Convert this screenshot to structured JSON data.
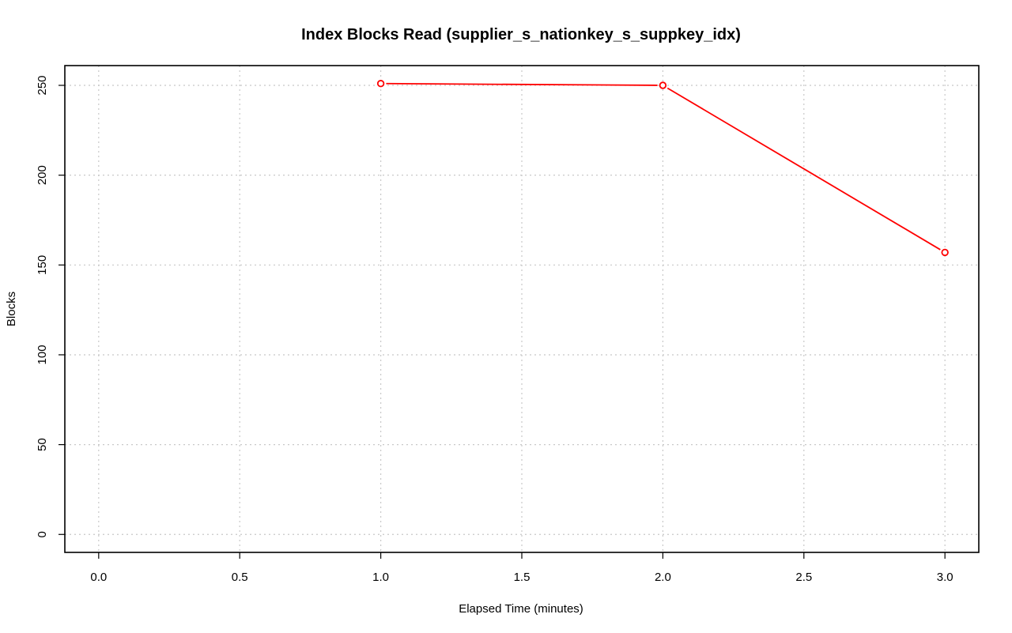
{
  "chart_data": {
    "type": "line",
    "title": "Index Blocks Read (supplier_s_nationkey_s_suppkey_idx)",
    "xlabel": "Elapsed Time (minutes)",
    "ylabel": "Blocks",
    "xlim": [
      -0.12,
      3.12
    ],
    "ylim": [
      -10,
      261
    ],
    "xticks": [
      0.0,
      0.5,
      1.0,
      1.5,
      2.0,
      2.5,
      3.0
    ],
    "xtick_labels": [
      "0.0",
      "0.5",
      "1.0",
      "1.5",
      "2.0",
      "2.5",
      "3.0"
    ],
    "yticks": [
      0,
      50,
      100,
      150,
      200,
      250
    ],
    "ytick_labels": [
      "0",
      "50",
      "100",
      "150",
      "200",
      "250"
    ],
    "grid": true,
    "legend": "none",
    "series": [
      {
        "color": "#ff0000",
        "marker": "open-circle",
        "x": [
          1.0,
          2.0,
          3.0
        ],
        "values": [
          251,
          250,
          157
        ]
      }
    ]
  }
}
